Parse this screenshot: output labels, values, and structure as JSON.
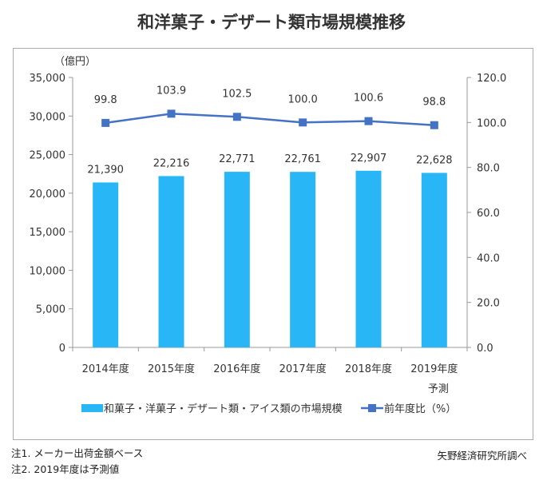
{
  "chart_data": {
    "type": "bar+line",
    "title": "和洋菓子・デザート類市場規模推移",
    "y_left_unit": "（億円）",
    "categories": [
      "2014年度",
      "2015年度",
      "2016年度",
      "2017年度",
      "2018年度",
      "2019年度"
    ],
    "category_sublabels": [
      "",
      "",
      "",
      "",
      "",
      "予測"
    ],
    "series": [
      {
        "name": "和菓子・洋菓子・デザート類・アイス類の市場規模",
        "type": "bar",
        "axis": "left",
        "color": "#29b6f6",
        "values": [
          21390,
          22216,
          22771,
          22761,
          22907,
          22628
        ],
        "labels": [
          "21,390",
          "22,216",
          "22,771",
          "22,761",
          "22,907",
          "22,628"
        ]
      },
      {
        "name": "前年度比（%）",
        "type": "line",
        "axis": "right",
        "color": "#4472c4",
        "values": [
          99.8,
          103.9,
          102.5,
          100.0,
          100.6,
          98.8
        ],
        "labels": [
          "99.8",
          "103.9",
          "102.5",
          "100.0",
          "100.6",
          "98.8"
        ]
      }
    ],
    "y_left": {
      "range": [
        0,
        35000
      ],
      "ticks": [
        "0",
        "5,000",
        "10,000",
        "15,000",
        "20,000",
        "25,000",
        "30,000",
        "35,000"
      ]
    },
    "y_right": {
      "range": [
        0,
        120
      ],
      "ticks": [
        "0.0",
        "20.0",
        "40.0",
        "60.0",
        "80.0",
        "100.0",
        "120.0"
      ]
    },
    "grid": false,
    "legend": "bottom"
  },
  "source": "矢野経済研究所調べ",
  "notes": [
    "注1. メーカー出荷金額ベース",
    "注2. 2019年度は予測値"
  ]
}
